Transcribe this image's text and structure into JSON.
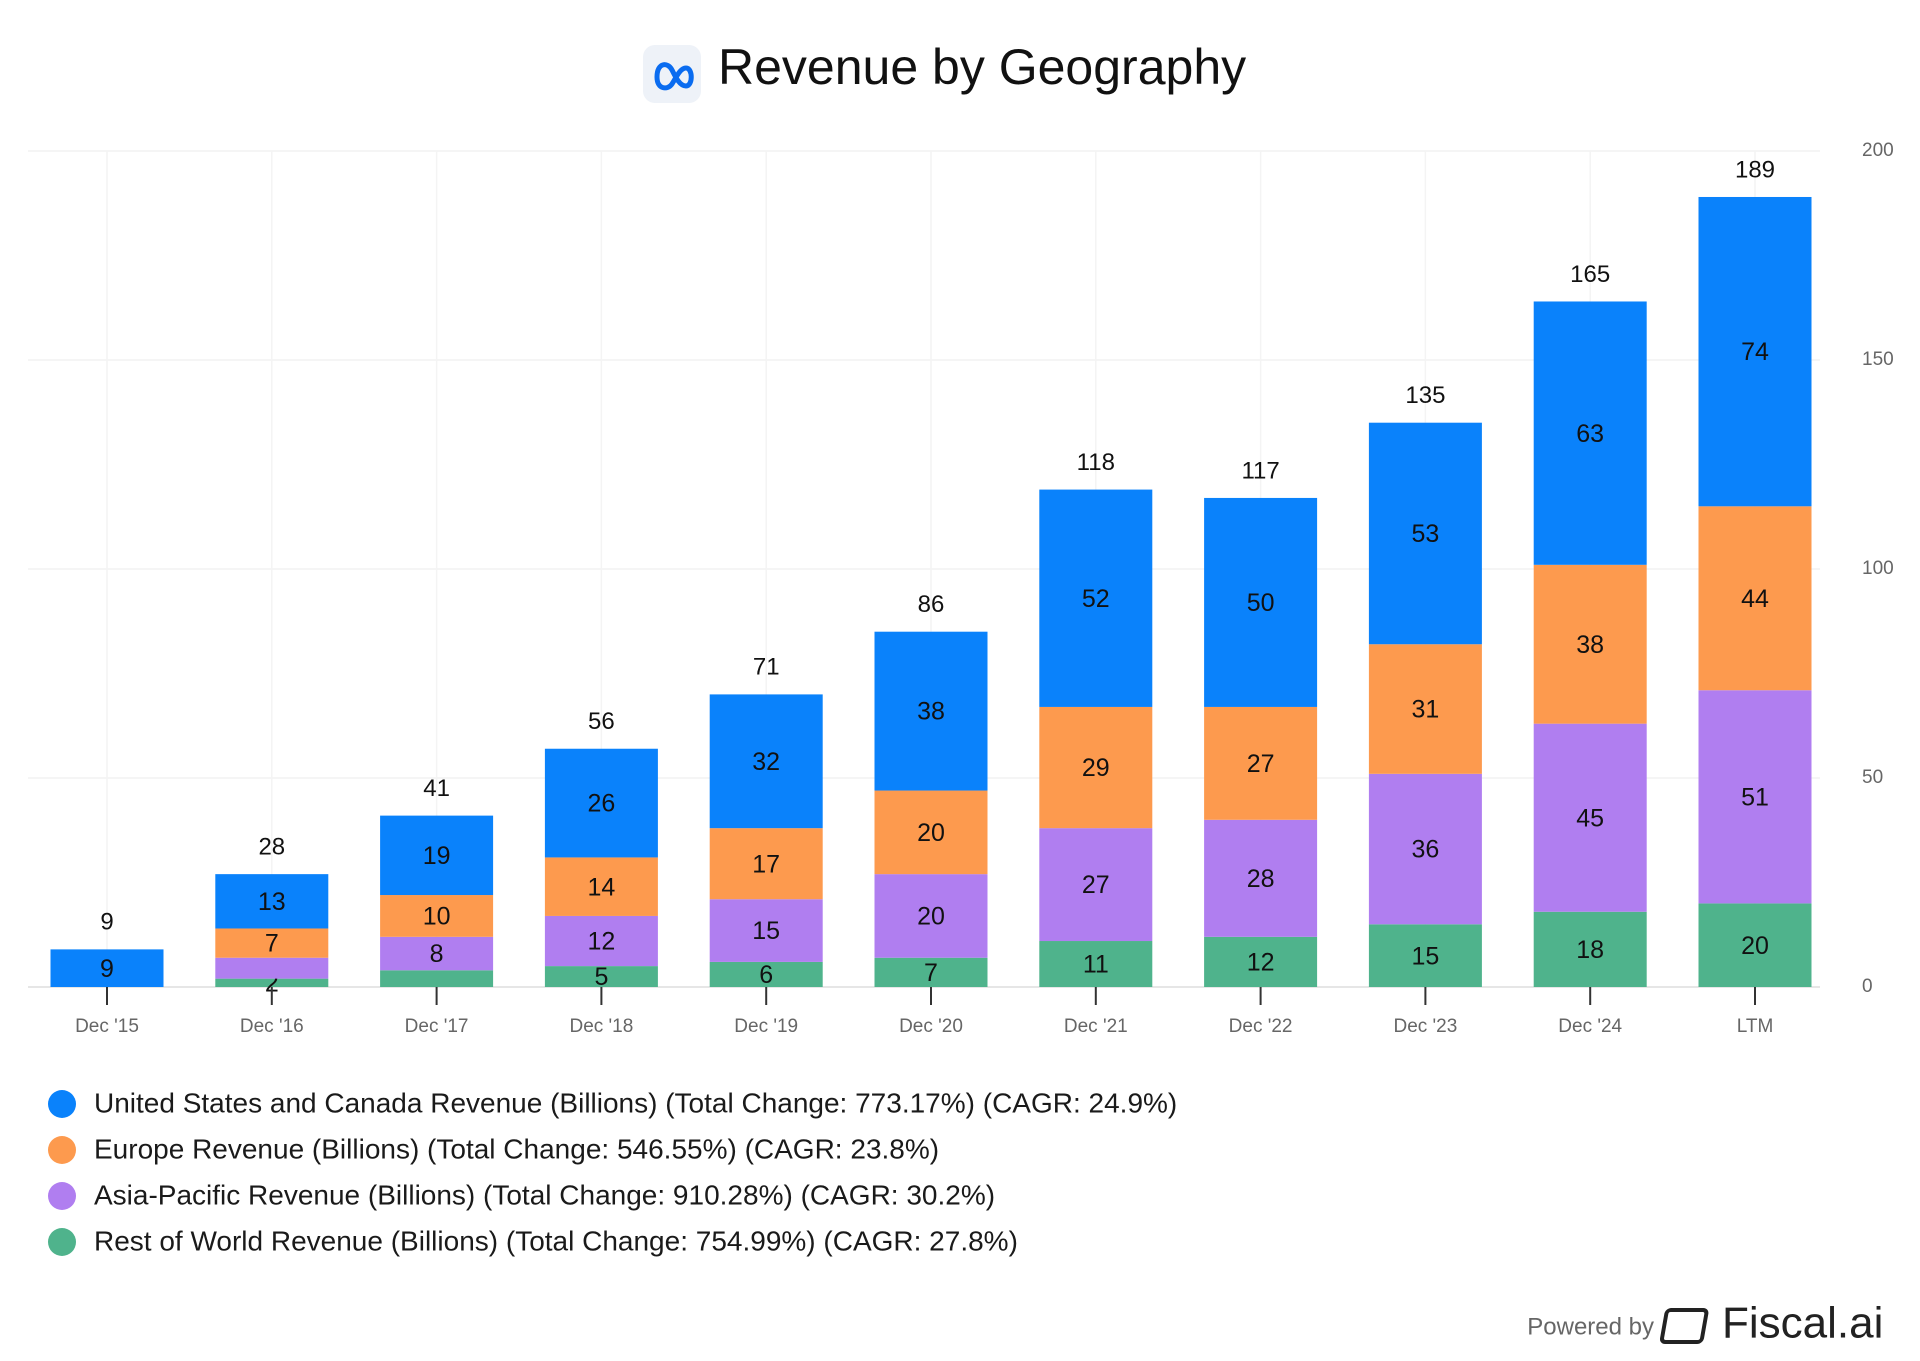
{
  "chart_data": {
    "type": "stacked_bar",
    "title": "Revenue by Geography",
    "categories": [
      "Dec '15",
      "Dec '16",
      "Dec '17",
      "Dec '18",
      "Dec '19",
      "Dec '20",
      "Dec '21",
      "Dec '22",
      "Dec '23",
      "Dec '24",
      "LTM"
    ],
    "series": [
      {
        "name": "Rest of World Revenue (Billions) (Total Change: 754.99%) (CAGR: 27.8%)",
        "color": "#4fb38c",
        "values": [
          null,
          2,
          4,
          5,
          6,
          7,
          11,
          12,
          15,
          18,
          20
        ],
        "value_labels": [
          null,
          "2",
          null,
          "5",
          "6",
          "7",
          "11",
          "12",
          "15",
          "18",
          "20"
        ]
      },
      {
        "name": "Asia-Pacific Revenue (Billions) (Total Change: 910.28%) (CAGR: 30.2%)",
        "color": "#b07ef0",
        "values": [
          null,
          5,
          8,
          12,
          15,
          20,
          27,
          28,
          36,
          45,
          51
        ],
        "value_labels": [
          null,
          null,
          "8",
          "12",
          "15",
          "20",
          "27",
          "28",
          "36",
          "45",
          "51"
        ]
      },
      {
        "name": "Europe Revenue (Billions) (Total Change: 546.55%) (CAGR: 23.8%)",
        "color": "#fd9a4e",
        "values": [
          null,
          7,
          10,
          14,
          17,
          20,
          29,
          27,
          31,
          38,
          44
        ]
      },
      {
        "name": "United States and Canada Revenue (Billions) (Total Change: 773.17%) (CAGR: 24.9%)",
        "color": "#0a82fb",
        "values": [
          9,
          13,
          19,
          26,
          32,
          38,
          52,
          50,
          53,
          63,
          74
        ]
      }
    ],
    "total_labels": [
      9,
      28,
      41,
      56,
      71,
      86,
      118,
      117,
      135,
      165,
      189
    ],
    "ylim": [
      0,
      200
    ],
    "yticks": [
      0,
      50,
      100,
      150,
      200
    ],
    "grid": true,
    "legend_order": [
      3,
      2,
      1,
      0
    ],
    "footer": {
      "prefix": "Powered by",
      "brand": "Fiscal.ai"
    }
  }
}
